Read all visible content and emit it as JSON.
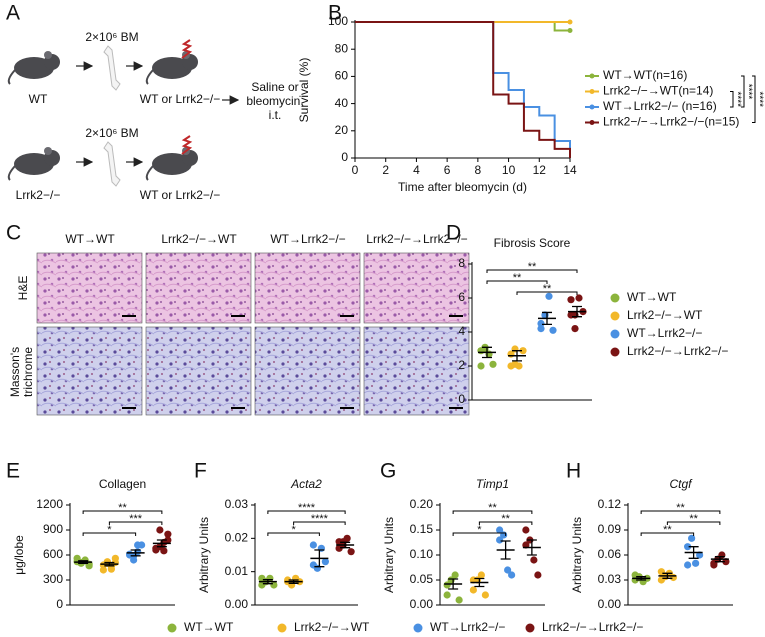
{
  "schematic": {
    "label": "A",
    "dose_top": "2×10⁶ BM",
    "dose_bottom": "2×10⁶ BM",
    "donor_top": "WT",
    "donor_bottom": "Lrrk2−/−",
    "recipient_top": "WT or Lrrk2−/−",
    "recipient_bottom": "WT or Lrrk2−/−",
    "treatment": [
      "Saline or",
      "bleomycin,",
      "i.t."
    ]
  },
  "histology": {
    "label": "C",
    "columns": [
      "WT→WT",
      "Lrrk2−/−→WT",
      "WT→Lrrk2−/−",
      "Lrrk2−/−→Lrrk2−/−"
    ],
    "rows": [
      [
        "H&E"
      ],
      [
        "Masson's",
        "trichrome"
      ]
    ]
  },
  "chart_data": [
    {
      "label": "B",
      "type": "step",
      "xlabel": "Time after bleomycin (d)",
      "ylabel": "Survival (%)",
      "x": [
        0,
        9,
        10,
        11,
        12,
        13,
        14
      ],
      "series": [
        {
          "name": "WT→WT(n=16)",
          "color": "#8cb43c",
          "values": [
            100,
            100,
            100,
            100,
            100,
            93.75,
            93.75
          ]
        },
        {
          "name": "Lrrk2−/−→WT(n=14)",
          "color": "#f2b82a",
          "values": [
            100,
            100,
            100,
            100,
            100,
            100,
            100
          ]
        },
        {
          "name": "WT→Lrrk2−/− (n=16)",
          "color": "#4a90e2",
          "values": [
            100,
            62.5,
            50,
            37.5,
            31.25,
            12.5,
            0
          ]
        },
        {
          "name": "Lrrk2−/−→Lrrk2−/−(n=15)",
          "color": "#7a1414",
          "values": [
            100,
            46.7,
            40,
            20,
            13.3,
            6.7,
            0
          ]
        }
      ],
      "xlim": [
        0,
        14
      ],
      "ylim": [
        0,
        100
      ],
      "xticks": [
        0,
        2,
        4,
        6,
        8,
        10,
        12,
        14
      ],
      "yticks": [
        0,
        20,
        40,
        60,
        80,
        100
      ],
      "legend": "right",
      "brackets": [
        {
          "from": 1,
          "to": 2,
          "label": "****"
        },
        {
          "from": 0,
          "to": 2,
          "label": "****"
        },
        {
          "from": 0,
          "to": 3,
          "label": "****"
        }
      ]
    },
    {
      "label": "D",
      "type": "dot",
      "title": "Fibrosis Score",
      "ylim": [
        0,
        8
      ],
      "yticks": [
        0,
        2,
        4,
        6,
        8
      ],
      "legend": "right",
      "series": [
        {
          "name": "WT→WT",
          "color": "#8cb43c",
          "values": [
            2.9,
            3.0,
            2.7,
            2.1,
            2.0,
            3.1
          ],
          "mean": 2.8,
          "error": 0.3
        },
        {
          "name": "Lrrk2−/−→WT",
          "color": "#f2b82a",
          "values": [
            2.7,
            2.1,
            2.0,
            2.9,
            2.0,
            3.0
          ],
          "mean": 2.6,
          "error": 0.3
        },
        {
          "name": "WT→Lrrk2−/−",
          "color": "#4a90e2",
          "values": [
            4.5,
            5.0,
            6.1,
            4.1,
            4.2,
            5.0
          ],
          "mean": 4.8,
          "error": 0.35
        },
        {
          "name": "Lrrk2−/−→Lrrk2−/−",
          "color": "#7a1414",
          "values": [
            5.0,
            4.2,
            6.0,
            5.2,
            5.9,
            5.0
          ],
          "mean": 5.2,
          "error": 0.3
        }
      ],
      "brackets": [
        {
          "from": 0,
          "to": 3,
          "label": "**"
        },
        {
          "from": 0,
          "to": 2,
          "label": "**"
        },
        {
          "from": 1,
          "to": 3,
          "label": "**"
        }
      ]
    },
    {
      "label": "E",
      "type": "dot",
      "title": "Collagen",
      "ylabel": "μg/lobe",
      "ylim": [
        0,
        1200
      ],
      "yticks": [
        0,
        300,
        600,
        900,
        1200
      ],
      "legend": "bottom",
      "series": [
        {
          "name": "WT→WT",
          "color": "#8cb43c",
          "values": [
            520,
            500,
            530,
            490,
            560,
            510,
            540,
            470
          ],
          "mean": 515,
          "error": 15
        },
        {
          "name": "Lrrk2−/−→WT",
          "color": "#f2b82a",
          "values": [
            480,
            520,
            430,
            560,
            420,
            500,
            470,
            510
          ],
          "mean": 490,
          "error": 20
        },
        {
          "name": "WT→Lrrk2−/−",
          "color": "#4a90e2",
          "values": [
            600,
            540,
            640,
            720,
            610,
            590,
            720
          ],
          "mean": 625,
          "error": 35
        },
        {
          "name": "Lrrk2−/−→Lrrk2−/−",
          "color": "#7a1414",
          "values": [
            660,
            700,
            750,
            850,
            680,
            900,
            650,
            780
          ],
          "mean": 740,
          "error": 40
        }
      ],
      "brackets": [
        {
          "from": 0,
          "to": 3,
          "label": "**"
        },
        {
          "from": 1,
          "to": 3,
          "label": "***"
        },
        {
          "from": 0,
          "to": 2,
          "label": "*"
        }
      ]
    },
    {
      "label": "F",
      "type": "dot",
      "title": "Acta2",
      "ylabel": "Arbitrary Units",
      "ylim": [
        0,
        0.03
      ],
      "yticks": [
        {
          "value": 0,
          "label": "0.00"
        },
        {
          "value": 0.01,
          "label": "0.01"
        },
        {
          "value": 0.02,
          "label": "0.02"
        },
        {
          "value": 0.03,
          "label": "0.03"
        }
      ],
      "series": [
        {
          "color": "#8cb43c",
          "values": [
            0.006,
            0.007,
            0.008,
            0.006,
            0.008,
            0.007
          ],
          "mean": 0.007,
          "error": 0.0006
        },
        {
          "color": "#f2b82a",
          "values": [
            0.007,
            0.006,
            0.008,
            0.007,
            0.0075,
            0.0065
          ],
          "mean": 0.007,
          "error": 0.0005
        },
        {
          "color": "#4a90e2",
          "values": [
            0.012,
            0.011,
            0.017,
            0.013,
            0.018
          ],
          "mean": 0.014,
          "error": 0.0025
        },
        {
          "color": "#7a1414",
          "values": [
            0.017,
            0.019,
            0.02,
            0.016,
            0.019,
            0.018
          ],
          "mean": 0.018,
          "error": 0.0008
        }
      ],
      "brackets": [
        {
          "from": 0,
          "to": 3,
          "label": "****"
        },
        {
          "from": 1,
          "to": 3,
          "label": "****"
        },
        {
          "from": 0,
          "to": 2,
          "label": "*"
        }
      ]
    },
    {
      "label": "G",
      "type": "dot",
      "title": "Timp1",
      "ylabel": "Arbitrary Units",
      "ylim": [
        0,
        0.2
      ],
      "yticks": [
        {
          "value": 0,
          "label": "0.00"
        },
        {
          "value": 0.05,
          "label": "0.05"
        },
        {
          "value": 0.1,
          "label": "0.10"
        },
        {
          "value": 0.15,
          "label": "0.15"
        },
        {
          "value": 0.2,
          "label": "0.20"
        }
      ],
      "series": [
        {
          "color": "#8cb43c",
          "values": [
            0.02,
            0.05,
            0.06,
            0.01,
            0.04
          ],
          "mean": 0.042,
          "error": 0.01
        },
        {
          "color": "#f2b82a",
          "values": [
            0.03,
            0.05,
            0.06,
            0.02,
            0.05
          ],
          "mean": 0.045,
          "error": 0.008
        },
        {
          "color": "#4a90e2",
          "values": [
            0.15,
            0.14,
            0.07,
            0.06,
            0.13
          ],
          "mean": 0.11,
          "error": 0.018
        },
        {
          "color": "#7a1414",
          "values": [
            0.15,
            0.13,
            0.09,
            0.06,
            0.12
          ],
          "mean": 0.115,
          "error": 0.015
        }
      ],
      "brackets": [
        {
          "from": 0,
          "to": 3,
          "label": "**"
        },
        {
          "from": 1,
          "to": 3,
          "label": "**"
        },
        {
          "from": 0,
          "to": 2,
          "label": "*"
        }
      ]
    },
    {
      "label": "H",
      "type": "dot",
      "title": "Ctgf",
      "ylabel": "Arbitrary Units",
      "ylim": [
        0,
        0.12
      ],
      "yticks": [
        {
          "value": 0,
          "label": "0.00"
        },
        {
          "value": 0.03,
          "label": "0.03"
        },
        {
          "value": 0.06,
          "label": "0.06"
        },
        {
          "value": 0.09,
          "label": "0.09"
        },
        {
          "value": 0.12,
          "label": "0.12"
        }
      ],
      "series": [
        {
          "color": "#8cb43c",
          "values": [
            0.03,
            0.034,
            0.028,
            0.032,
            0.036,
            0.033
          ],
          "mean": 0.032,
          "error": 0.002
        },
        {
          "color": "#f2b82a",
          "values": [
            0.03,
            0.034,
            0.038,
            0.033,
            0.04,
            0.035
          ],
          "mean": 0.035,
          "error": 0.003
        },
        {
          "color": "#4a90e2",
          "values": [
            0.07,
            0.08,
            0.05,
            0.06,
            0.048
          ],
          "mean": 0.063,
          "error": 0.007
        },
        {
          "color": "#7a1414",
          "values": [
            0.05,
            0.055,
            0.06,
            0.052,
            0.048
          ],
          "mean": 0.055,
          "error": 0.003
        }
      ],
      "brackets": [
        {
          "from": 0,
          "to": 3,
          "label": "**"
        },
        {
          "from": 1,
          "to": 3,
          "label": "**"
        },
        {
          "from": 0,
          "to": 2,
          "label": "**"
        }
      ]
    }
  ]
}
